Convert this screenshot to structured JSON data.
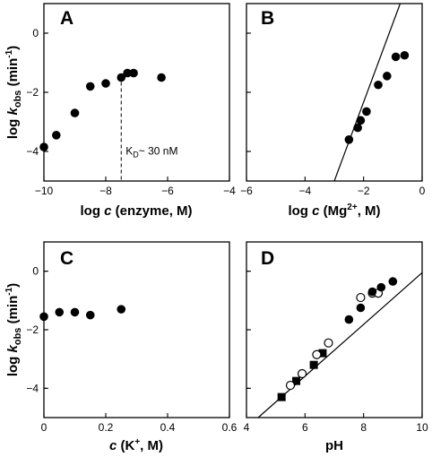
{
  "chart_data": [
    {
      "panel": "A",
      "type": "scatter",
      "xlabel": "log c (enzyme, M)",
      "ylabel": "log kobs (min-1)",
      "xlim": [
        -10,
        -4
      ],
      "ylim": [
        -5,
        1
      ],
      "xticks": [
        -10,
        -8,
        -6,
        -4
      ],
      "yticks": [
        -4,
        -2,
        0
      ],
      "series": [
        {
          "marker": "filled-circle",
          "x": [
            -10,
            -9.6,
            -9.0,
            -8.5,
            -8.0,
            -7.5,
            -7.3,
            -7.1,
            -6.2
          ],
          "y": [
            -3.85,
            -3.45,
            -2.7,
            -1.8,
            -1.7,
            -1.5,
            -1.35,
            -1.35,
            -1.5
          ]
        }
      ],
      "annotation": {
        "text_main": "K",
        "text_sub": "D",
        "text_rest": "~ 30 nM",
        "x": -7.5
      }
    },
    {
      "panel": "B",
      "type": "scatter",
      "xlabel": "log c (Mg2+, M)",
      "ylabel": "",
      "xlim": [
        -6,
        0
      ],
      "ylim": [
        -5,
        1
      ],
      "xticks": [
        -6,
        -4,
        -2,
        0
      ],
      "yticks": [
        -4,
        -2,
        0
      ],
      "series": [
        {
          "marker": "filled-circle",
          "x": [
            -2.5,
            -2.2,
            -2.1,
            -1.9,
            -1.5,
            -1.2,
            -0.9,
            -0.6
          ],
          "y": [
            -3.6,
            -3.2,
            -2.95,
            -2.65,
            -1.75,
            -1.45,
            -0.8,
            -0.75
          ]
        }
      ],
      "fit_line": {
        "x": [
          -3.0,
          -0.75
        ],
        "y": [
          -5,
          1
        ]
      }
    },
    {
      "panel": "C",
      "type": "scatter",
      "xlabel": "c (K+, M)",
      "ylabel": "log kobs (min-1)",
      "xlim": [
        0,
        0.6
      ],
      "ylim": [
        -5,
        1
      ],
      "xticks": [
        0,
        0.2,
        0.4,
        0.6
      ],
      "xtick_labels": [
        "0",
        "0.2",
        "0.4",
        "0.6"
      ],
      "yticks": [
        -4,
        -2,
        0
      ],
      "series": [
        {
          "marker": "filled-circle",
          "x": [
            0.0,
            0.05,
            0.1,
            0.15,
            0.25
          ],
          "y": [
            -1.55,
            -1.4,
            -1.4,
            -1.5,
            -1.3
          ]
        }
      ]
    },
    {
      "panel": "D",
      "type": "scatter",
      "xlabel": "pH",
      "ylabel": "",
      "xlim": [
        4,
        10
      ],
      "ylim": [
        -5,
        1
      ],
      "xticks": [
        4,
        6,
        8,
        10
      ],
      "yticks": [
        -4,
        -2,
        0
      ],
      "series": [
        {
          "marker": "filled-square",
          "x": [
            5.2,
            5.7,
            6.3,
            6.6
          ],
          "y": [
            -4.3,
            -3.75,
            -3.2,
            -2.8
          ]
        },
        {
          "marker": "open-circle",
          "x": [
            5.5,
            5.9,
            6.4,
            6.8,
            7.9,
            8.3,
            8.5
          ],
          "y": [
            -3.9,
            -3.5,
            -2.85,
            -2.45,
            -0.9,
            -0.75,
            -0.75
          ]
        },
        {
          "marker": "filled-circle",
          "x": [
            7.5,
            7.9,
            8.3,
            8.6,
            9.0
          ],
          "y": [
            -1.65,
            -1.25,
            -0.7,
            -0.55,
            -0.35
          ]
        }
      ],
      "fit_line": {
        "x": [
          4.4,
          10
        ],
        "y": [
          -5,
          -0.05
        ]
      }
    }
  ],
  "labels": {
    "A": "A",
    "B": "B",
    "C": "C",
    "D": "D",
    "ylab_log": "log ",
    "ylab_k": "k",
    "ylab_sub": "obs",
    "ylab_unit": " (min",
    "ylab_sup": "-1",
    "ylab_close": ")",
    "xA_log": "log ",
    "xA_c": "c",
    "xA_rest": " (enzyme, M)",
    "xB_log": "log ",
    "xB_c": "c",
    "xB_open": " (Mg",
    "xB_sup": "2+",
    "xB_rest": ", M)",
    "xC_c": "c",
    "xC_open": " (K",
    "xC_sup": "+",
    "xC_rest": ", M)",
    "xD": "pH"
  }
}
